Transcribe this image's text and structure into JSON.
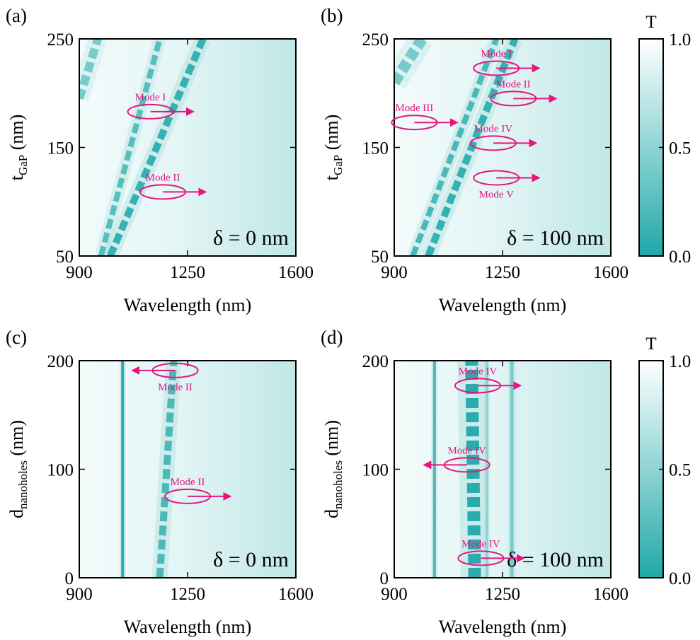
{
  "colors": {
    "low": "#1fa8a8",
    "high": "#ffffff",
    "annotation": "#e6167f"
  },
  "colorbars": [
    {
      "title": "T",
      "ticks": [
        "1.0",
        "0.5",
        "0.0"
      ]
    },
    {
      "title": "T",
      "ticks": [
        "1.0",
        "0.5",
        "0.0"
      ]
    }
  ],
  "chart_data": [
    {
      "type": "heatmap",
      "panel_label": "(a)",
      "xlabel": "Wavelength (nm)",
      "ylabel_main": "t",
      "ylabel_sub": "GaP",
      "ylabel_tail": " (nm)",
      "xlim": [
        900,
        1600
      ],
      "ylim": [
        50,
        250
      ],
      "xticks": [
        "900",
        "1250",
        "1600"
      ],
      "yticks": [
        "250",
        "150",
        "50"
      ],
      "annotation": "δ = 0 nm",
      "bands": [
        {
          "name": "Mode I",
          "line": [
            [
              1000,
              50
            ],
            [
              1300,
              250
            ]
          ],
          "width": 10,
          "strength": 0.9
        },
        {
          "name": "Mode II",
          "line": [
            [
              970,
              50
            ],
            [
              1160,
              250
            ]
          ],
          "width": 8,
          "strength": 0.75
        },
        {
          "name": "",
          "line": [
            [
              900,
              195
            ],
            [
              960,
              250
            ]
          ],
          "width": 12,
          "strength": 0.6
        }
      ],
      "modes": [
        {
          "label": "Mode I",
          "at": [
            1130,
            183
          ],
          "dir": "right"
        },
        {
          "label": "Mode II",
          "at": [
            1170,
            109
          ],
          "dir": "right"
        }
      ]
    },
    {
      "type": "heatmap",
      "panel_label": "(b)",
      "xlabel": "Wavelength (nm)",
      "ylabel_main": "t",
      "ylabel_sub": "GaP",
      "ylabel_tail": " (nm)",
      "xlim": [
        900,
        1600
      ],
      "ylim": [
        50,
        250
      ],
      "xticks": [
        "900",
        "1250",
        "1600"
      ],
      "yticks": [
        "250",
        "150",
        "50"
      ],
      "annotation": "δ = 100 nm",
      "bands": [
        {
          "name": "Mode I",
          "line": [
            [
              1010,
              50
            ],
            [
              1290,
              250
            ]
          ],
          "width": 10,
          "strength": 0.9
        },
        {
          "name": "Mode II",
          "line": [
            [
              960,
              50
            ],
            [
              1230,
              250
            ]
          ],
          "width": 8,
          "strength": 0.8
        },
        {
          "name": "",
          "line": [
            [
              900,
              210
            ],
            [
              990,
              250
            ]
          ],
          "width": 16,
          "strength": 0.6
        }
      ],
      "modes": [
        {
          "label": "Mode I",
          "at": [
            1230,
            223
          ],
          "dir": "right"
        },
        {
          "label": "Mode II",
          "at": [
            1285,
            195
          ],
          "dir": "right"
        },
        {
          "label": "Mode III",
          "at": [
            965,
            173
          ],
          "dir": "right"
        },
        {
          "label": "Mode IV",
          "at": [
            1220,
            154
          ],
          "dir": "right"
        },
        {
          "label": "Mode V",
          "at": [
            1230,
            122
          ],
          "dir": "right",
          "label_below": true
        }
      ]
    },
    {
      "type": "heatmap",
      "panel_label": "(c)",
      "xlabel": "Wavelength (nm)",
      "ylabel_main": "d",
      "ylabel_sub": "nanoholes",
      "ylabel_tail": " (nm)",
      "xlim": [
        900,
        1600
      ],
      "ylim": [
        0,
        200
      ],
      "xticks": [
        "900",
        "1250",
        "1600"
      ],
      "yticks": [
        "200",
        "100",
        "0"
      ],
      "annotation": "δ = 0 nm",
      "bands": [
        {
          "name": "",
          "line": [
            [
              1040,
              0
            ],
            [
              1040,
              200
            ]
          ],
          "width": 4,
          "strength": 0.95
        },
        {
          "name": "Mode II",
          "line": [
            [
              1160,
              0
            ],
            [
              1205,
              200
            ]
          ],
          "width": 10,
          "strength": 0.8
        }
      ],
      "modes": [
        {
          "label": "Mode II",
          "at": [
            1210,
            191
          ],
          "dir": "left",
          "label_below": true
        },
        {
          "label": "Mode II",
          "at": [
            1250,
            75
          ],
          "dir": "right"
        }
      ]
    },
    {
      "type": "heatmap",
      "panel_label": "(d)",
      "xlabel": "Wavelength (nm)",
      "ylabel_main": "d",
      "ylabel_sub": "nanoholes",
      "ylabel_tail": " (nm)",
      "xlim": [
        900,
        1600
      ],
      "ylim": [
        0,
        200
      ],
      "xticks": [
        "900",
        "1250",
        "1600"
      ],
      "yticks": [
        "200",
        "100",
        "0"
      ],
      "annotation": "δ = 100 nm",
      "bands": [
        {
          "name": "Mode IV",
          "line": [
            [
              1160,
              0
            ],
            [
              1150,
              200
            ]
          ],
          "width": 18,
          "strength": 0.95
        },
        {
          "name": "",
          "line": [
            [
              1030,
              0
            ],
            [
              1030,
              200
            ]
          ],
          "width": 4,
          "strength": 0.8
        },
        {
          "name": "",
          "line": [
            [
              1200,
              0
            ],
            [
              1200,
              200
            ]
          ],
          "width": 4,
          "strength": 0.5
        },
        {
          "name": "",
          "line": [
            [
              1280,
              0
            ],
            [
              1280,
              200
            ]
          ],
          "width": 5,
          "strength": 0.6
        }
      ],
      "modes": [
        {
          "label": "Mode IV",
          "at": [
            1170,
            177
          ],
          "dir": "right"
        },
        {
          "label": "Mode IV",
          "at": [
            1135,
            104
          ],
          "dir": "left"
        },
        {
          "label": "Mode IV",
          "at": [
            1180,
            18
          ],
          "dir": "right"
        }
      ]
    }
  ]
}
